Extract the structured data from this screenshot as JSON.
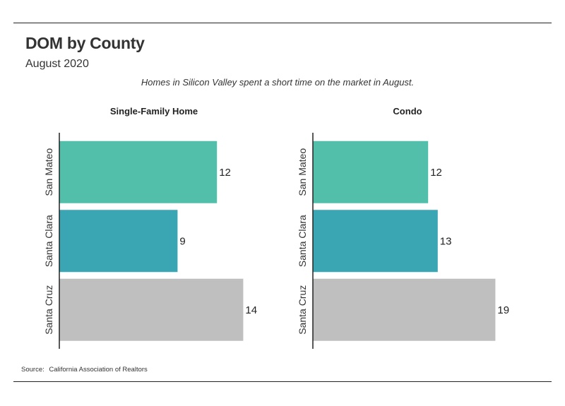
{
  "header": {
    "title": "DOM by County",
    "subtitle": "August 2020",
    "caption": "Homes in Silicon Valley spent a short time on the market in August."
  },
  "footer": {
    "source_label": "Source:",
    "source_text": "California Association of Realtors"
  },
  "chart_data": [
    {
      "type": "bar",
      "orientation": "horizontal",
      "title": "Single-Family Home",
      "categories": [
        "San Mateo",
        "Santa Clara",
        "Santa Cruz"
      ],
      "values": [
        12,
        9,
        14
      ],
      "colors": [
        "#52bfaa",
        "#3aa6b3",
        "#bfbfbf"
      ],
      "xlim": [
        0,
        20
      ],
      "grid": false,
      "data_labels": true
    },
    {
      "type": "bar",
      "orientation": "horizontal",
      "title": "Condo",
      "categories": [
        "San Mateo",
        "Santa Clara",
        "Santa Cruz"
      ],
      "values": [
        12,
        13,
        19
      ],
      "colors": [
        "#52bfaa",
        "#3aa6b3",
        "#bfbfbf"
      ],
      "xlim": [
        0,
        20
      ],
      "grid": false,
      "data_labels": true
    }
  ]
}
